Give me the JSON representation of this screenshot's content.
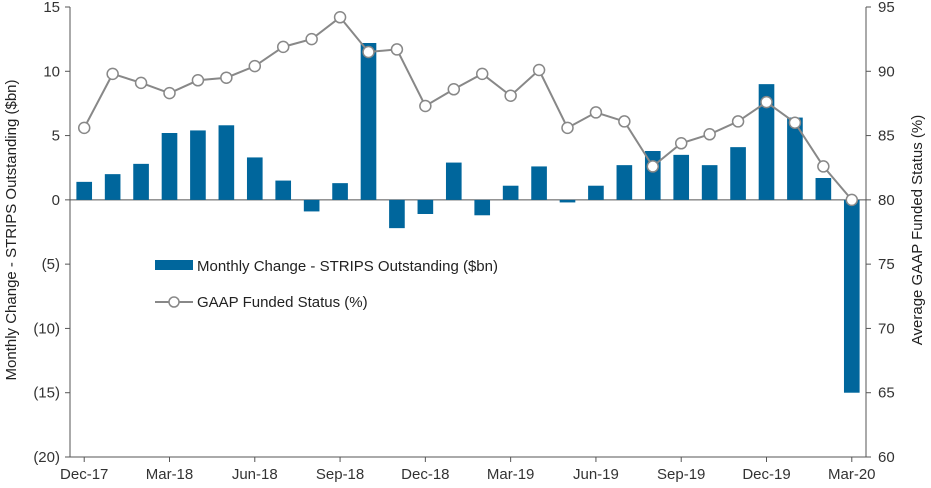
{
  "chart_data": {
    "type": "bar",
    "categories": [
      "Dec-17",
      "Jan-18",
      "Feb-18",
      "Mar-18",
      "Apr-18",
      "May-18",
      "Jun-18",
      "Jul-18",
      "Aug-18",
      "Sep-18",
      "Oct-18",
      "Nov-18",
      "Dec-18",
      "Jan-19",
      "Feb-19",
      "Mar-19",
      "Apr-19",
      "May-19",
      "Jun-19",
      "Jul-19",
      "Aug-19",
      "Sep-19",
      "Oct-19",
      "Nov-19",
      "Dec-19",
      "Jan-20",
      "Feb-20",
      "Mar-20"
    ],
    "x_tick_labels": [
      "Dec-17",
      "Mar-18",
      "Jun-18",
      "Sep-18",
      "Dec-18",
      "Mar-19",
      "Jun-19",
      "Sep-19",
      "Dec-19",
      "Mar-20"
    ],
    "series": [
      {
        "name": "Monthly Change - STRIPS Outstanding ($bn)",
        "type": "bar",
        "axis": "left",
        "color": "#00669c",
        "values": [
          1.4,
          2.0,
          2.8,
          5.2,
          5.4,
          5.8,
          3.3,
          1.5,
          -0.9,
          1.3,
          12.2,
          -2.2,
          -1.1,
          2.9,
          -1.2,
          1.1,
          2.6,
          -0.2,
          1.1,
          2.7,
          3.8,
          3.5,
          2.7,
          4.1,
          9.0,
          6.4,
          1.7,
          -15.0
        ]
      },
      {
        "name": "GAAP Funded Status (%)",
        "type": "line",
        "axis": "right",
        "color": "#888888",
        "values": [
          85.6,
          89.8,
          89.1,
          88.3,
          89.3,
          89.5,
          90.4,
          91.9,
          92.5,
          94.2,
          91.5,
          91.7,
          87.3,
          88.6,
          89.8,
          88.1,
          90.1,
          85.6,
          86.8,
          86.1,
          82.6,
          84.4,
          85.1,
          86.1,
          87.6,
          86.0,
          82.6,
          80.0
        ]
      }
    ],
    "ylabel_left": "Monthly Change - STRIPS Outstanding ($bn)",
    "ylabel_right": "Average GAAP Funded Status (%)",
    "ylim_left": [
      -20,
      15
    ],
    "ylim_right": [
      60,
      95
    ],
    "yticks_left": [
      "15",
      "10",
      "5",
      "0",
      "(5)",
      "(10)",
      "(15)",
      "(20)"
    ],
    "yticks_right": [
      "95",
      "90",
      "85",
      "80",
      "75",
      "70",
      "65",
      "60"
    ],
    "grid": false,
    "legend_placement": "center-left"
  }
}
